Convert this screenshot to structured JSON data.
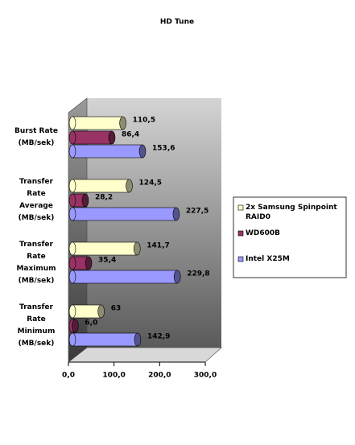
{
  "chart_data": {
    "type": "bar3d",
    "title": "HD Tune",
    "categories": [
      "Burst Rate (MB/sek)",
      "Transfer Rate Average (MB/sek)",
      "Transfer Rate Maximum (MB/sek)",
      "Transfer Rate Minimum (MB/sek)"
    ],
    "series": [
      {
        "name": "2x Samsung Spinpoint RAID0",
        "color": "#ffffcc",
        "values": [
          110.5,
          124.5,
          141.7,
          63
        ],
        "value_labels": [
          "110,5",
          "124,5",
          "141,7",
          "63"
        ]
      },
      {
        "name": "WD600B",
        "color": "#993366",
        "values": [
          86.4,
          28.2,
          35.4,
          6.0
        ],
        "value_labels": [
          "86,4",
          "28,2",
          "35,4",
          "6,0"
        ]
      },
      {
        "name": "Intel X25M",
        "color": "#9999ff",
        "values": [
          153.6,
          227.5,
          229.8,
          142.9
        ],
        "value_labels": [
          "153,6",
          "227,5",
          "229,8",
          "142,9"
        ]
      }
    ],
    "xlim": [
      0,
      300
    ],
    "xticks": [
      {
        "value": 0,
        "label": "0,0"
      },
      {
        "value": 100,
        "label": "100,0"
      },
      {
        "value": 200,
        "label": "200,0"
      },
      {
        "value": 300,
        "label": "300,0"
      }
    ],
    "legend": "right"
  }
}
